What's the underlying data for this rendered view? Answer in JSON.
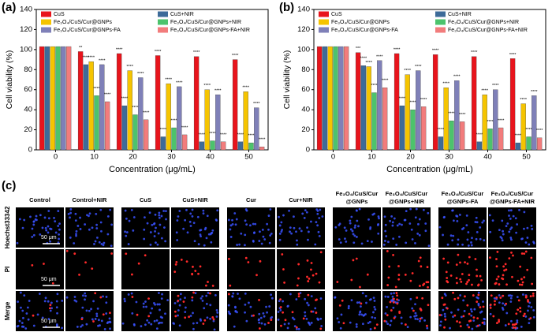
{
  "chart_data": [
    {
      "type": "bar",
      "label": "(a)",
      "ylabel": "Cell viability (%)",
      "xlabel": "Concentration (μg/mL)",
      "categories": [
        "0",
        "10",
        "20",
        "30",
        "40",
        "50"
      ],
      "ylim": [
        0,
        140
      ],
      "yticks": [
        0,
        20,
        40,
        60,
        80,
        100,
        120,
        140
      ],
      "series": [
        {
          "name": "CuS",
          "color": "#e8141c",
          "values": [
            103,
            98,
            96,
            94,
            93,
            90
          ],
          "significance": [
            null,
            "**",
            "****",
            "****",
            "****",
            "****"
          ]
        },
        {
          "name": "CuS+NIR",
          "color": "#3d6b99",
          "values": [
            103,
            85,
            44,
            13,
            8,
            8
          ],
          "significance": [
            null,
            "****",
            "****",
            "****",
            "****",
            "****"
          ]
        },
        {
          "name": "Fe₃O₄/CuS/Cur@GNPs",
          "color": "#f5c400",
          "values": [
            103,
            88,
            79,
            66,
            60,
            58
          ],
          "significance": [
            null,
            "****",
            "****",
            "****",
            "****",
            "****"
          ]
        },
        {
          "name": "Fe₃O₄/CuS/Cur@GNPs+NIR",
          "color": "#4cc36c",
          "values": [
            103,
            54,
            35,
            22,
            9,
            7
          ],
          "significance": [
            null,
            "****",
            "****",
            "****",
            "****",
            "****"
          ]
        },
        {
          "name": "Fe₃O₄/CuS/Cur@GNPs-FA",
          "color": "#7f80b8",
          "values": [
            103,
            85,
            72,
            63,
            55,
            42
          ],
          "significance": [
            null,
            "****",
            "****",
            "****",
            "****",
            "****"
          ]
        },
        {
          "name": "Fe₃O₄/CuS/Cur@GNPs-FA+NIR",
          "color": "#f27c7c",
          "values": [
            103,
            48,
            30,
            15,
            8,
            3
          ],
          "significance": [
            null,
            "****",
            "****",
            "****",
            "****",
            "****"
          ]
        }
      ]
    },
    {
      "type": "bar",
      "label": "(b)",
      "ylabel": "Cell viability (%)",
      "xlabel": "Concentration (μg/mL)",
      "categories": [
        "0",
        "10",
        "20",
        "30",
        "40",
        "50"
      ],
      "ylim": [
        0,
        140
      ],
      "yticks": [
        0,
        20,
        40,
        60,
        80,
        100,
        120,
        140
      ],
      "series": [
        {
          "name": "CuS",
          "color": "#e8141c",
          "values": [
            103,
            97,
            96,
            95,
            93,
            91
          ],
          "significance": [
            null,
            "***",
            "****",
            "****",
            "****",
            "****"
          ]
        },
        {
          "name": "CuS+NIR",
          "color": "#3d6b99",
          "values": [
            103,
            84,
            44,
            13,
            8,
            7
          ],
          "significance": [
            null,
            "****",
            "****",
            "****",
            "****",
            "****"
          ]
        },
        {
          "name": "Fe₃O₄/CuS/Cur@GNPs",
          "color": "#f5c400",
          "values": [
            103,
            83,
            75,
            62,
            55,
            46
          ],
          "significance": [
            null,
            "****",
            "****",
            "****",
            "****",
            "****"
          ]
        },
        {
          "name": "Fe₃O₄/CuS/Cur@GNPs+NIR",
          "color": "#4cc36c",
          "values": [
            103,
            57,
            40,
            29,
            21,
            13
          ],
          "significance": [
            null,
            "****",
            "****",
            "****",
            "****",
            "****"
          ]
        },
        {
          "name": "Fe₃O₄/CuS/Cur@GNPs-FA",
          "color": "#7f80b8",
          "values": [
            103,
            89,
            79,
            69,
            60,
            54
          ],
          "significance": [
            null,
            "****",
            "****",
            "****",
            "****",
            "****"
          ]
        },
        {
          "name": "Fe₃O₄/CuS/Cur@GNPs-FA+NIR",
          "color": "#f27c7c",
          "values": [
            103,
            62,
            43,
            28,
            22,
            12
          ],
          "significance": [
            null,
            "****",
            "****",
            "****",
            "****",
            "****"
          ]
        }
      ]
    }
  ],
  "panel_c": {
    "label": "(c)",
    "scale_bar": "50 μm",
    "columns": [
      [
        "Control"
      ],
      [
        "Control+NIR"
      ],
      [
        "CuS"
      ],
      [
        "CuS+NIR"
      ],
      [
        "Cur"
      ],
      [
        "Cur+NIR"
      ],
      [
        "Fe₃O₄/CuS/Cur",
        "@GNPs"
      ],
      [
        "Fe₃O₄/CuS/Cur",
        "@GNPs+NIR"
      ],
      [
        "Fe₃O₄/CuS/Cur",
        "@GNPs-FA"
      ],
      [
        "Fe₃O₄/CuS/Cur",
        "@GNPs-FA+NIR"
      ]
    ],
    "rows": [
      "Hoechst33342",
      "PI",
      "Merge"
    ]
  }
}
